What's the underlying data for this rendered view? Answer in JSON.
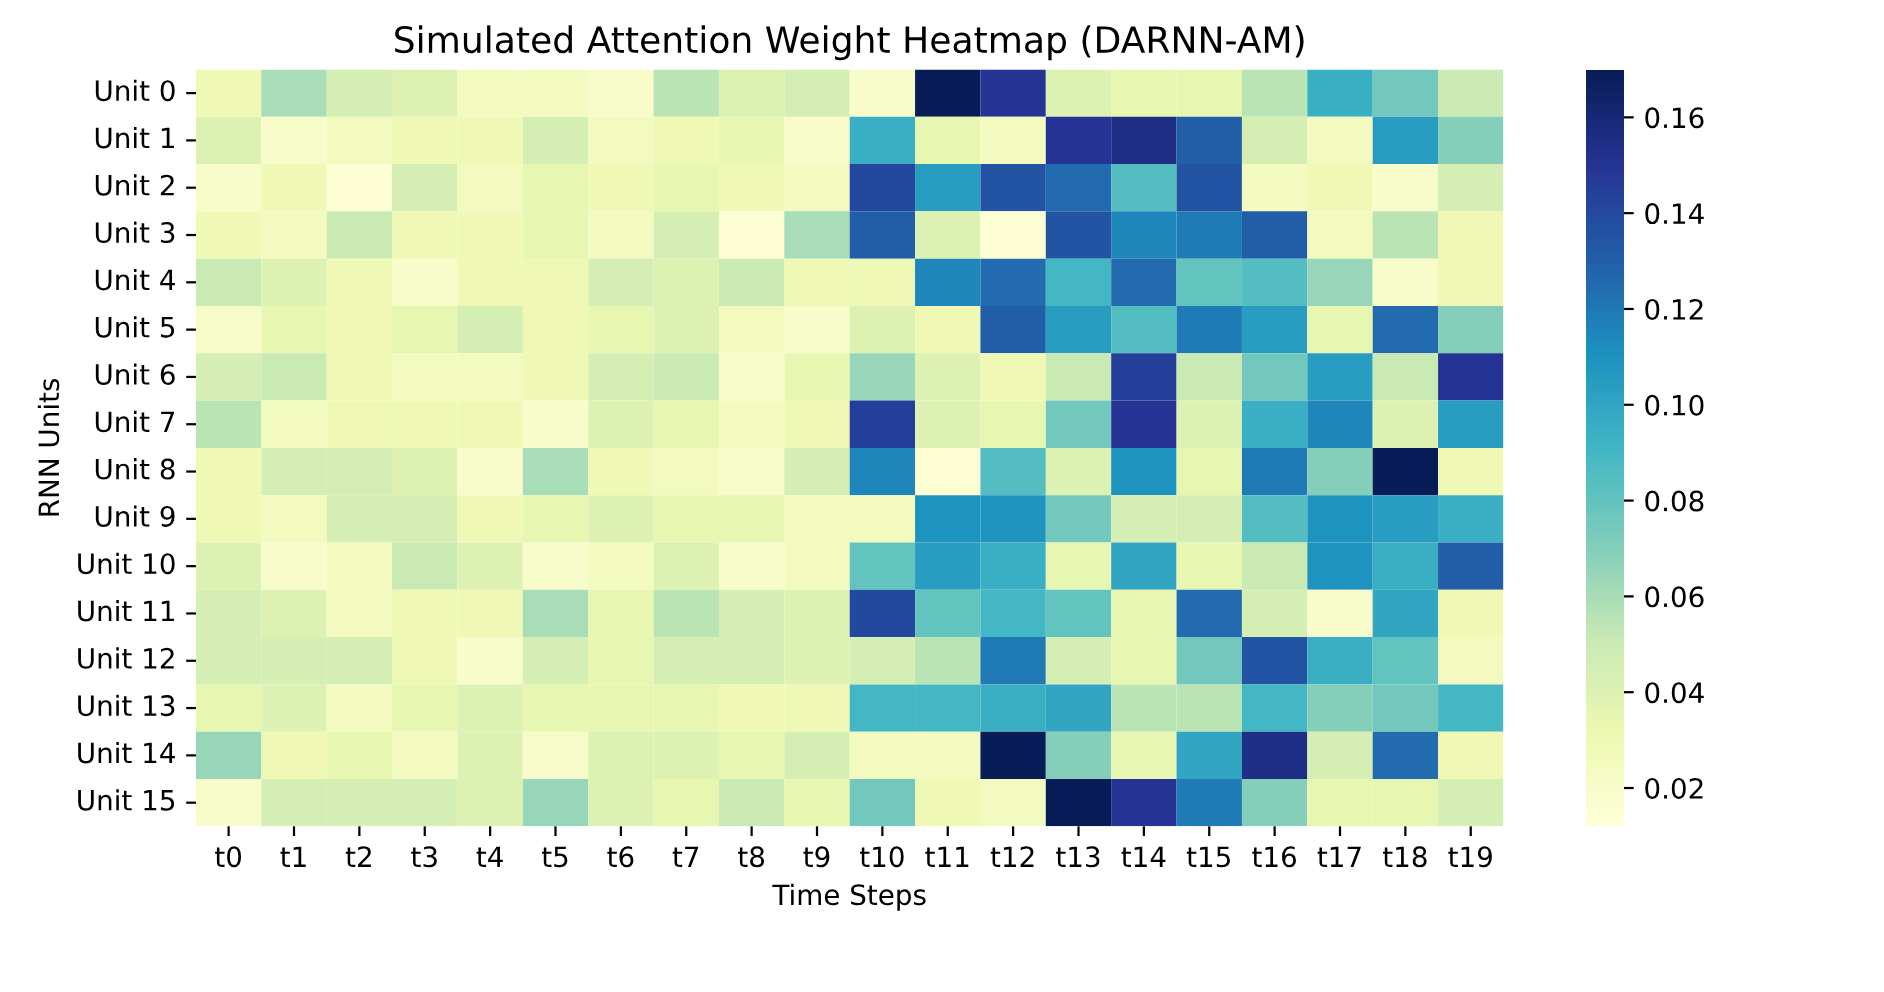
{
  "chart_data": {
    "type": "heatmap",
    "title": "Simulated Attention Weight Heatmap (DARNN-AM)",
    "xlabel": "Time Steps",
    "ylabel": "RNN Units",
    "categories": [
      "t0",
      "t1",
      "t2",
      "t3",
      "t4",
      "t5",
      "t6",
      "t7",
      "t8",
      "t9",
      "t10",
      "t11",
      "t12",
      "t13",
      "t14",
      "t15",
      "t16",
      "t17",
      "t18",
      "t19"
    ],
    "y_categories": [
      "Unit 0",
      "Unit 1",
      "Unit 2",
      "Unit 3",
      "Unit 4",
      "Unit 5",
      "Unit 6",
      "Unit 7",
      "Unit 8",
      "Unit 9",
      "Unit 10",
      "Unit 11",
      "Unit 12",
      "Unit 13",
      "Unit 14",
      "Unit 15"
    ],
    "cells": [
      [
        0.03,
        0.06,
        0.045,
        0.04,
        0.025,
        0.025,
        0.02,
        0.055,
        0.04,
        0.045,
        0.02,
        0.17,
        0.15,
        0.04,
        0.035,
        0.035,
        0.055,
        0.095,
        0.075,
        0.05
      ],
      [
        0.04,
        0.02,
        0.025,
        0.03,
        0.03,
        0.045,
        0.025,
        0.03,
        0.035,
        0.02,
        0.095,
        0.035,
        0.025,
        0.15,
        0.155,
        0.13,
        0.045,
        0.025,
        0.105,
        0.07
      ],
      [
        0.02,
        0.03,
        0.015,
        0.045,
        0.025,
        0.035,
        0.03,
        0.035,
        0.03,
        0.025,
        0.14,
        0.105,
        0.135,
        0.125,
        0.085,
        0.135,
        0.025,
        0.03,
        0.02,
        0.045
      ],
      [
        0.03,
        0.025,
        0.05,
        0.03,
        0.03,
        0.035,
        0.025,
        0.045,
        0.015,
        0.06,
        0.13,
        0.04,
        0.015,
        0.135,
        0.115,
        0.12,
        0.13,
        0.025,
        0.055,
        0.03
      ],
      [
        0.05,
        0.04,
        0.03,
        0.02,
        0.03,
        0.03,
        0.045,
        0.04,
        0.05,
        0.03,
        0.03,
        0.115,
        0.125,
        0.09,
        0.125,
        0.08,
        0.085,
        0.065,
        0.02,
        0.03
      ],
      [
        0.02,
        0.035,
        0.03,
        0.035,
        0.045,
        0.03,
        0.035,
        0.04,
        0.025,
        0.02,
        0.04,
        0.03,
        0.13,
        0.105,
        0.085,
        0.12,
        0.105,
        0.035,
        0.125,
        0.07
      ],
      [
        0.045,
        0.05,
        0.03,
        0.025,
        0.025,
        0.03,
        0.045,
        0.05,
        0.02,
        0.035,
        0.065,
        0.04,
        0.03,
        0.05,
        0.145,
        0.05,
        0.075,
        0.105,
        0.05,
        0.15
      ],
      [
        0.055,
        0.025,
        0.03,
        0.03,
        0.03,
        0.02,
        0.04,
        0.035,
        0.025,
        0.03,
        0.145,
        0.04,
        0.035,
        0.075,
        0.15,
        0.04,
        0.095,
        0.115,
        0.04,
        0.105
      ],
      [
        0.03,
        0.045,
        0.045,
        0.04,
        0.02,
        0.06,
        0.03,
        0.025,
        0.02,
        0.045,
        0.115,
        0.015,
        0.085,
        0.04,
        0.11,
        0.035,
        0.12,
        0.07,
        0.17,
        0.03
      ],
      [
        0.03,
        0.025,
        0.045,
        0.045,
        0.03,
        0.035,
        0.04,
        0.035,
        0.035,
        0.025,
        0.025,
        0.11,
        0.11,
        0.075,
        0.045,
        0.045,
        0.085,
        0.11,
        0.105,
        0.095
      ],
      [
        0.04,
        0.02,
        0.025,
        0.05,
        0.04,
        0.02,
        0.025,
        0.04,
        0.02,
        0.025,
        0.08,
        0.105,
        0.095,
        0.035,
        0.1,
        0.035,
        0.05,
        0.11,
        0.095,
        0.13
      ],
      [
        0.045,
        0.04,
        0.025,
        0.03,
        0.03,
        0.06,
        0.035,
        0.055,
        0.045,
        0.04,
        0.14,
        0.08,
        0.09,
        0.08,
        0.035,
        0.125,
        0.045,
        0.02,
        0.1,
        0.03
      ],
      [
        0.045,
        0.045,
        0.045,
        0.03,
        0.02,
        0.045,
        0.035,
        0.045,
        0.045,
        0.04,
        0.045,
        0.055,
        0.12,
        0.045,
        0.035,
        0.075,
        0.135,
        0.095,
        0.08,
        0.025
      ],
      [
        0.035,
        0.04,
        0.025,
        0.035,
        0.04,
        0.035,
        0.035,
        0.035,
        0.03,
        0.03,
        0.09,
        0.09,
        0.095,
        0.1,
        0.055,
        0.055,
        0.09,
        0.07,
        0.075,
        0.09
      ],
      [
        0.065,
        0.03,
        0.035,
        0.025,
        0.04,
        0.02,
        0.04,
        0.04,
        0.035,
        0.045,
        0.025,
        0.025,
        0.17,
        0.07,
        0.035,
        0.1,
        0.155,
        0.045,
        0.125,
        0.03
      ],
      [
        0.02,
        0.045,
        0.045,
        0.045,
        0.04,
        0.065,
        0.04,
        0.035,
        0.05,
        0.035,
        0.075,
        0.03,
        0.025,
        0.17,
        0.15,
        0.12,
        0.07,
        0.035,
        0.035,
        0.045
      ]
    ],
    "clim": [
      0.012,
      0.17
    ],
    "cticks": [
      0.02,
      0.04,
      0.06,
      0.08,
      {
        "value": 0.1,
        "label": "0.10"
      },
      0.12,
      0.14,
      0.16
    ]
  }
}
